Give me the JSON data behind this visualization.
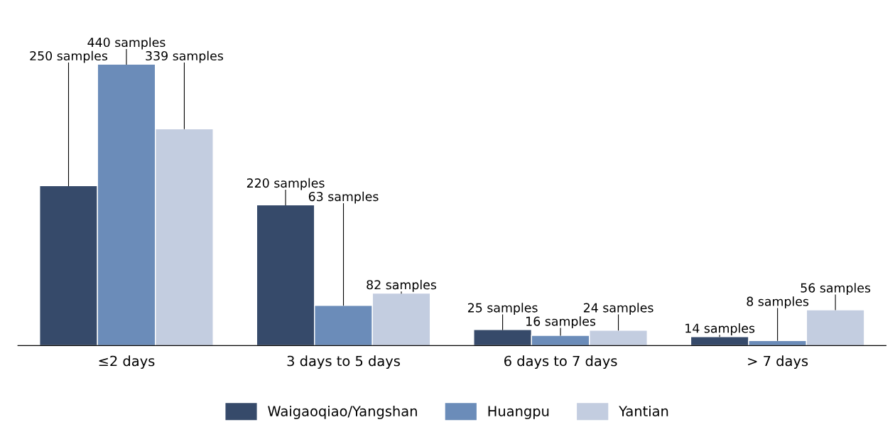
{
  "chart_data": {
    "type": "bar",
    "categories": [
      "≤2 days",
      "3 days to 5 days",
      "6 days to 7 days",
      "> 7 days"
    ],
    "series": [
      {
        "name": "Waigaoqiao/Yangshan",
        "color": "#364a6a",
        "values": [
          250,
          220,
          25,
          14
        ],
        "value_labels": [
          "250 samples",
          "220 samples",
          "25 samples",
          "14 samples"
        ]
      },
      {
        "name": "Huangpu",
        "color": "#6b8cb9",
        "values": [
          440,
          63,
          16,
          8
        ],
        "value_labels": [
          "440 samples",
          "63 samples",
          "16 samples",
          "8 samples"
        ]
      },
      {
        "name": "Yantian",
        "color": "#c3cde0",
        "values": [
          339,
          82,
          24,
          56
        ],
        "value_labels": [
          "339 samples",
          "82 samples",
          "24 samples",
          "56 samples"
        ]
      }
    ],
    "tick_labels": "x",
    "grid": false,
    "legend": "bottom"
  }
}
